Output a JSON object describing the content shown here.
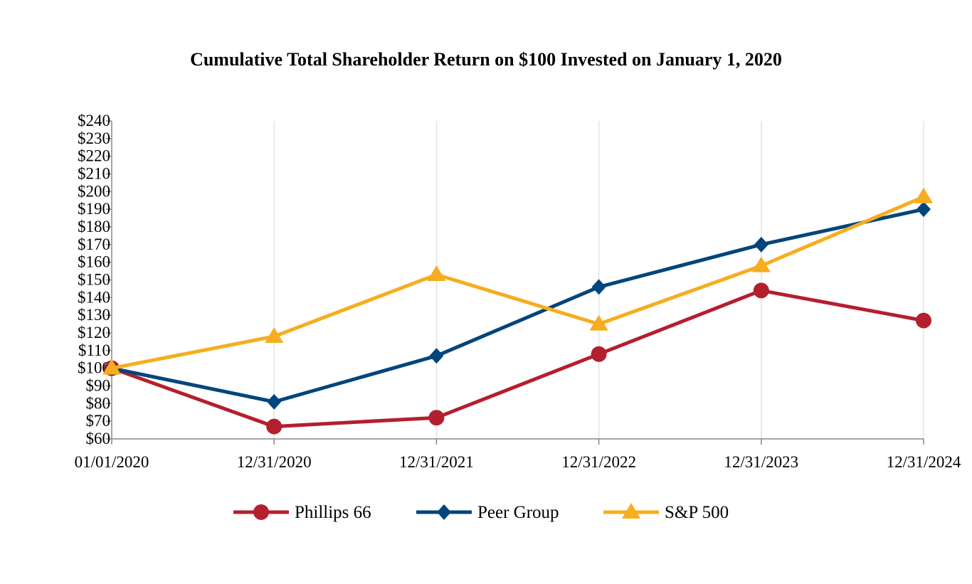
{
  "chart_data": {
    "type": "line",
    "title": "Cumulative Total Shareholder Return on $100 Invested on January 1, 2020",
    "xlabel": "",
    "ylabel": "",
    "categories": [
      "01/01/2020",
      "12/31/2020",
      "12/31/2021",
      "12/31/2022",
      "12/31/2023",
      "12/31/2024"
    ],
    "ylim": [
      60,
      240
    ],
    "ytick_step": 10,
    "ytick_labels": [
      "$60",
      "$70",
      "$80",
      "$90",
      "$100",
      "$110",
      "$120",
      "$130",
      "$140",
      "$150",
      "$160",
      "$170",
      "$180",
      "$190",
      "$200",
      "$210",
      "$220",
      "$230",
      "$240"
    ],
    "grid": "vertical",
    "legend_position": "bottom",
    "series": [
      {
        "name": "Phillips 66",
        "color": "#B41F2E",
        "marker": "circle",
        "values": [
          100,
          67,
          72,
          108,
          144,
          127
        ]
      },
      {
        "name": "Peer Group",
        "color": "#00457C",
        "marker": "diamond",
        "values": [
          100,
          81,
          107,
          146,
          170,
          190
        ]
      },
      {
        "name": "S&P 500",
        "color": "#F6AD1E",
        "marker": "triangle",
        "values": [
          100,
          118,
          153,
          125,
          158,
          197
        ]
      }
    ]
  }
}
